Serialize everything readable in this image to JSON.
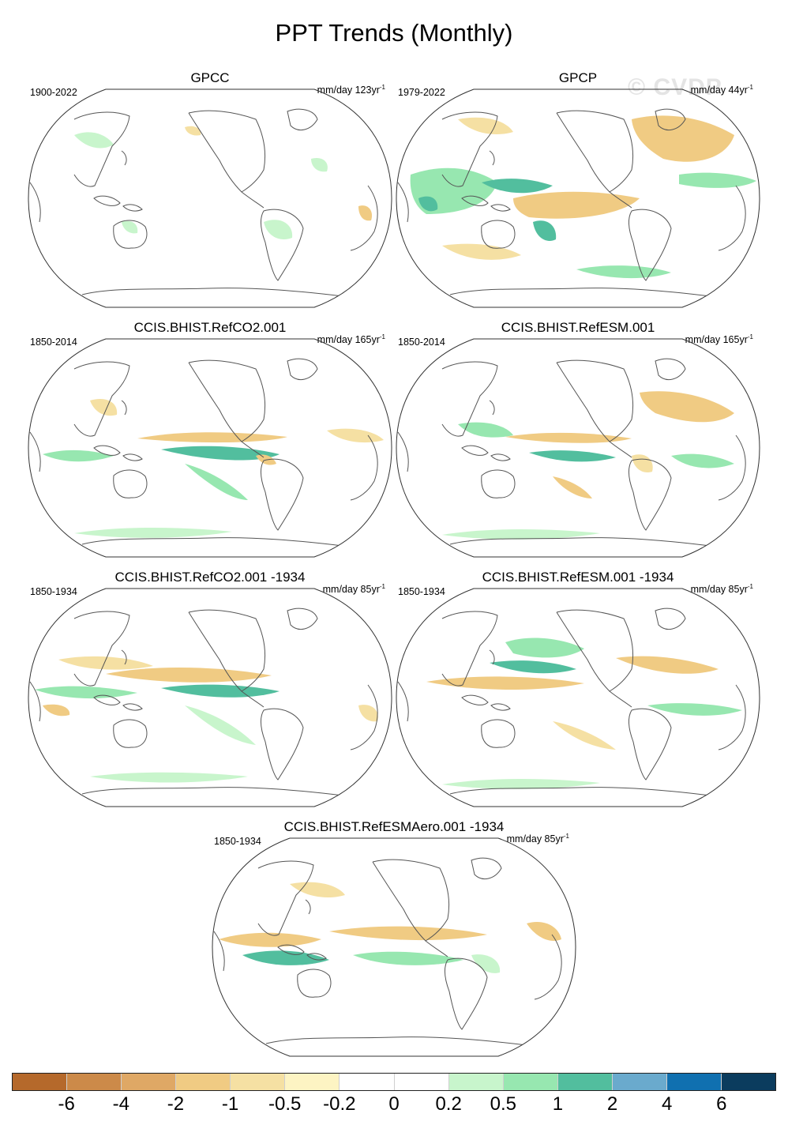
{
  "title": "PPT Trends (Monthly)",
  "watermark": "© CVDP",
  "panels": [
    {
      "title": "GPCC",
      "period": "1900-2022",
      "units": "mm/day 123yr",
      "units_sup": "-1"
    },
    {
      "title": "GPCP",
      "period": "1979-2022",
      "units": "mm/day 44yr",
      "units_sup": "-1"
    },
    {
      "title": "CCIS.BHIST.RefCO2.001",
      "period": "1850-2014",
      "units": "mm/day 165yr",
      "units_sup": "-1"
    },
    {
      "title": "CCIS.BHIST.RefESM.001",
      "period": "1850-2014",
      "units": "mm/day 165yr",
      "units_sup": "-1"
    },
    {
      "title": "CCIS.BHIST.RefCO2.001 -1934",
      "period": "1850-1934",
      "units": "mm/day 85yr",
      "units_sup": "-1"
    },
    {
      "title": "CCIS.BHIST.RefESM.001 -1934",
      "period": "1850-1934",
      "units": "mm/day 85yr",
      "units_sup": "-1"
    },
    {
      "title": "CCIS.BHIST.RefESMAero.001 -1934",
      "period": "1850-1934",
      "units": "mm/day 85yr",
      "units_sup": "-1"
    }
  ],
  "colorbar": {
    "colors": [
      "#b5692b",
      "#cc8a49",
      "#dfa865",
      "#f0cb83",
      "#f5e0a3",
      "#fdf4c3",
      "#ffffff",
      "#ffffff",
      "#c8f5cc",
      "#97e7b0",
      "#52be9e",
      "#6aaacd",
      "#1070b0",
      "#0b3c5e"
    ],
    "labels": [
      "-6",
      "-4",
      "-2",
      "-1",
      "-0.5",
      "-0.2",
      "0",
      "0.2",
      "0.5",
      "1",
      "2",
      "4",
      "6"
    ]
  }
}
